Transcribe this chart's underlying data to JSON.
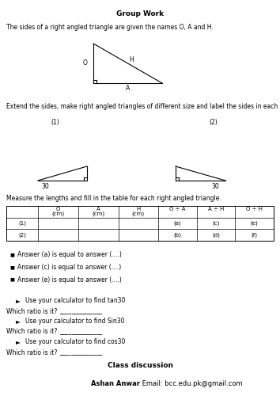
{
  "title": "Group Work",
  "intro_text": "The sides of a right angled triangle are given the names O, A and H.",
  "extend_text": "Extend the sides, make right angled triangles of different size and label the sides in each case:",
  "measure_text": "Measure the lengths and fill in the table for each right angled triangle.",
  "bullet_points": [
    "Answer (a) is equal to answer (....)",
    "Answer (c) is equal to answer (....)",
    "Answer (e) is equal to answer (....)"
  ],
  "calc_items": [
    "Use your calculator to find tan30",
    "Use your calculator to find Sin30",
    "Use your calculator to find cos30"
  ],
  "which_ratio": "Which ratio is it?",
  "underline": "______________",
  "class_discussion": "Class discussion",
  "author": "Ashan Anwar",
  "email": " Email: bcc.edu.pk@gmail.com",
  "table_headers_line1": [
    "",
    "O",
    "A",
    "H",
    "O ÷ A",
    "A ÷ H",
    "O ÷ H"
  ],
  "table_headers_line2": [
    "",
    "(cm)",
    "(cm)",
    "(cm)",
    "",
    "",
    ""
  ],
  "table_row1": [
    "(1)",
    "",
    "",
    "",
    "(a)",
    "(c)",
    "(e)"
  ],
  "table_row2": [
    "(2)",
    "",
    "",
    "",
    "(b)",
    "(d)",
    "(f)"
  ],
  "label1": "(1)",
  "label2": "(2)",
  "angle_label": "30"
}
